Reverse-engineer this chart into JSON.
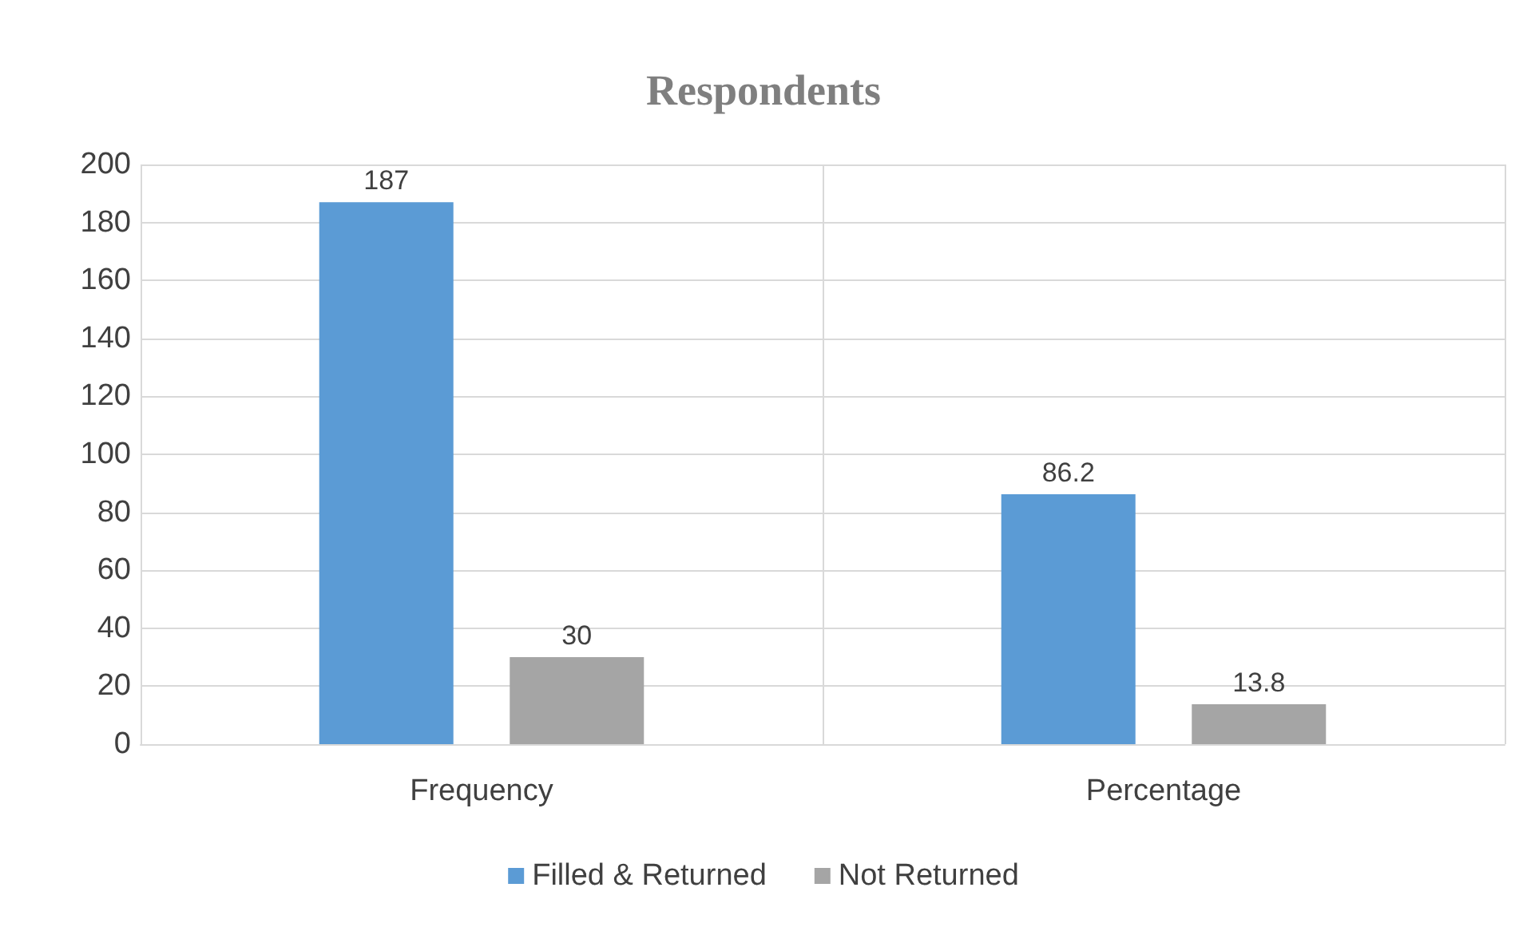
{
  "chart_data": {
    "type": "bar",
    "title": "Respondents",
    "categories": [
      "Frequency",
      "Percentage"
    ],
    "series": [
      {
        "name": "Filled & Returned",
        "color": "#5b9bd5",
        "values": [
          187,
          86.2
        ]
      },
      {
        "name": "Not Returned",
        "color": "#a5a5a5",
        "values": [
          30,
          13.8
        ]
      }
    ],
    "ylim": [
      0,
      200
    ],
    "yticks": [
      0,
      20,
      40,
      60,
      80,
      100,
      120,
      140,
      160,
      180,
      200
    ],
    "grid": true,
    "legend": "bottom",
    "data_labels": true
  }
}
